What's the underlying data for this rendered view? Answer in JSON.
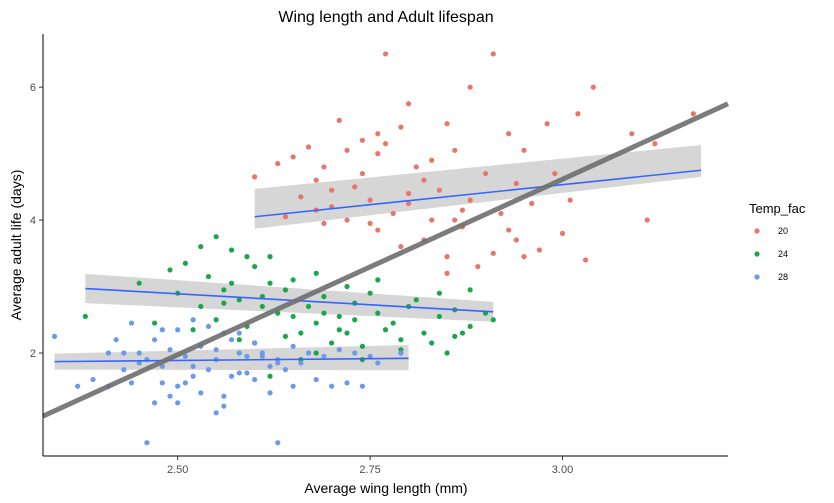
{
  "chart_data": {
    "type": "scatter",
    "title": "Wing length and Adult lifespan",
    "xlabel": "Average wing length (mm)",
    "ylabel": "Average adult life (days)",
    "xlim": [
      2.325,
      3.215
    ],
    "ylim": [
      0.45,
      6.8
    ],
    "x_ticks": [
      2.5,
      2.75,
      3.0
    ],
    "x_tick_labels": [
      "2.50",
      "2.75",
      "3.00"
    ],
    "y_ticks": [
      2,
      4,
      6
    ],
    "y_tick_labels": [
      "2",
      "4",
      "6"
    ],
    "grid": false,
    "legend": {
      "title": "Temp_fac",
      "placement": "right",
      "entries": [
        {
          "label": "20",
          "color": "#e8746a"
        },
        {
          "label": "24",
          "color": "#1aa64a"
        },
        {
          "label": "28",
          "color": "#6a9ae8"
        }
      ]
    },
    "series": [
      {
        "name": "20",
        "color": "#e8746a",
        "points": [
          [
            2.63,
            4.85
          ],
          [
            2.65,
            4.95
          ],
          [
            2.67,
            5.1
          ],
          [
            2.69,
            4.8
          ],
          [
            2.71,
            5.5
          ],
          [
            2.72,
            5.05
          ],
          [
            2.74,
            5.2
          ],
          [
            2.76,
            5.3
          ],
          [
            2.77,
            6.5
          ],
          [
            2.8,
            5.75
          ],
          [
            2.85,
            5.45
          ],
          [
            2.88,
            6.0
          ],
          [
            2.91,
            6.5
          ],
          [
            2.93,
            5.3
          ],
          [
            2.95,
            5.05
          ],
          [
            2.98,
            5.45
          ],
          [
            3.02,
            5.6
          ],
          [
            3.04,
            6.0
          ],
          [
            3.09,
            5.3
          ],
          [
            3.12,
            5.15
          ],
          [
            3.17,
            5.6
          ],
          [
            2.66,
            4.35
          ],
          [
            2.68,
            4.6
          ],
          [
            2.7,
            4.2
          ],
          [
            2.73,
            4.5
          ],
          [
            2.75,
            4.3
          ],
          [
            2.78,
            4.1
          ],
          [
            2.8,
            4.4
          ],
          [
            2.82,
            4.6
          ],
          [
            2.84,
            4.45
          ],
          [
            2.86,
            4.0
          ],
          [
            2.88,
            4.3
          ],
          [
            2.9,
            4.7
          ],
          [
            2.92,
            4.1
          ],
          [
            2.94,
            4.55
          ],
          [
            2.96,
            4.25
          ],
          [
            2.99,
            4.7
          ],
          [
            3.01,
            4.3
          ],
          [
            2.64,
            4.05
          ],
          [
            2.69,
            3.95
          ],
          [
            2.72,
            4.0
          ],
          [
            2.76,
            3.85
          ],
          [
            2.79,
            3.6
          ],
          [
            2.82,
            3.7
          ],
          [
            2.85,
            3.45
          ],
          [
            2.87,
            3.9
          ],
          [
            2.89,
            3.3
          ],
          [
            2.91,
            3.5
          ],
          [
            2.94,
            3.7
          ],
          [
            2.97,
            3.55
          ],
          [
            3.0,
            3.8
          ],
          [
            3.03,
            3.4
          ],
          [
            3.11,
            4.0
          ],
          [
            2.83,
            4.9
          ],
          [
            2.76,
            5.0
          ],
          [
            2.81,
            4.8
          ],
          [
            2.79,
            5.4
          ],
          [
            2.77,
            5.15
          ],
          [
            2.86,
            5.05
          ],
          [
            2.6,
            4.65
          ],
          [
            2.74,
            4.7
          ],
          [
            2.7,
            4.45
          ],
          [
            2.83,
            4.0
          ],
          [
            2.87,
            4.15
          ],
          [
            2.93,
            3.85
          ],
          [
            2.95,
            3.45
          ],
          [
            2.85,
            3.2
          ],
          [
            2.75,
            3.95
          ],
          [
            2.68,
            4.15
          ],
          [
            2.8,
            4.25
          ]
        ]
      },
      {
        "name": "24",
        "color": "#1aa64a",
        "points": [
          [
            2.38,
            2.55
          ],
          [
            2.45,
            3.05
          ],
          [
            2.49,
            3.25
          ],
          [
            2.51,
            3.35
          ],
          [
            2.53,
            3.6
          ],
          [
            2.55,
            3.75
          ],
          [
            2.57,
            3.55
          ],
          [
            2.6,
            3.3
          ],
          [
            2.62,
            3.45
          ],
          [
            2.65,
            3.1
          ],
          [
            2.5,
            2.9
          ],
          [
            2.53,
            2.7
          ],
          [
            2.56,
            2.95
          ],
          [
            2.58,
            2.8
          ],
          [
            2.61,
            2.85
          ],
          [
            2.64,
            2.95
          ],
          [
            2.67,
            2.7
          ],
          [
            2.69,
            2.85
          ],
          [
            2.71,
            2.55
          ],
          [
            2.73,
            2.75
          ],
          [
            2.76,
            2.6
          ],
          [
            2.78,
            2.45
          ],
          [
            2.8,
            2.7
          ],
          [
            2.82,
            2.3
          ],
          [
            2.84,
            2.55
          ],
          [
            2.86,
            2.25
          ],
          [
            2.88,
            2.4
          ],
          [
            2.9,
            2.6
          ],
          [
            2.47,
            2.45
          ],
          [
            2.52,
            2.35
          ],
          [
            2.55,
            2.5
          ],
          [
            2.59,
            2.4
          ],
          [
            2.63,
            2.6
          ],
          [
            2.66,
            2.3
          ],
          [
            2.68,
            2.45
          ],
          [
            2.7,
            2.15
          ],
          [
            2.72,
            2.3
          ],
          [
            2.74,
            2.1
          ],
          [
            2.77,
            2.35
          ],
          [
            2.79,
            2.2
          ],
          [
            2.83,
            2.15
          ],
          [
            2.85,
            2.0
          ],
          [
            2.87,
            2.3
          ],
          [
            2.62,
            1.65
          ],
          [
            2.66,
            1.9
          ],
          [
            2.58,
            2.2
          ],
          [
            2.54,
            3.15
          ],
          [
            2.57,
            3.05
          ],
          [
            2.62,
            3.05
          ],
          [
            2.68,
            3.2
          ],
          [
            2.72,
            3.0
          ],
          [
            2.75,
            2.9
          ],
          [
            2.81,
            2.8
          ],
          [
            2.84,
            2.9
          ],
          [
            2.88,
            2.95
          ],
          [
            2.6,
            2.15
          ],
          [
            2.64,
            2.25
          ],
          [
            2.68,
            2.0
          ],
          [
            2.74,
            1.9
          ],
          [
            2.79,
            2.05
          ],
          [
            2.91,
            2.5
          ],
          [
            2.56,
            2.75
          ],
          [
            2.69,
            2.6
          ],
          [
            2.71,
            2.35
          ],
          [
            2.65,
            2.55
          ],
          [
            2.61,
            2.7
          ],
          [
            2.73,
            2.5
          ],
          [
            2.76,
            3.1
          ],
          [
            2.59,
            3.45
          ],
          [
            2.86,
            2.65
          ]
        ]
      },
      {
        "name": "28",
        "color": "#6a9ae8",
        "points": [
          [
            2.34,
            2.25
          ],
          [
            2.37,
            1.5
          ],
          [
            2.39,
            1.6
          ],
          [
            2.41,
            1.5
          ],
          [
            2.43,
            1.75
          ],
          [
            2.45,
            1.85
          ],
          [
            2.47,
            1.25
          ],
          [
            2.49,
            1.35
          ],
          [
            2.5,
            1.5
          ],
          [
            2.51,
            1.55
          ],
          [
            2.53,
            1.4
          ],
          [
            2.55,
            1.1
          ],
          [
            2.56,
            1.35
          ],
          [
            2.46,
            0.65
          ],
          [
            2.63,
            0.65
          ],
          [
            2.58,
            1.7
          ],
          [
            2.61,
            1.95
          ],
          [
            2.63,
            1.85
          ],
          [
            2.65,
            1.5
          ],
          [
            2.68,
            1.6
          ],
          [
            2.7,
            1.5
          ],
          [
            2.72,
            1.55
          ],
          [
            2.74,
            1.5
          ],
          [
            2.41,
            2.0
          ],
          [
            2.43,
            2.0
          ],
          [
            2.45,
            2.0
          ],
          [
            2.47,
            2.2
          ],
          [
            2.49,
            2.05
          ],
          [
            2.51,
            1.95
          ],
          [
            2.53,
            2.1
          ],
          [
            2.55,
            2.05
          ],
          [
            2.57,
            2.2
          ],
          [
            2.59,
            1.95
          ],
          [
            2.61,
            2.0
          ],
          [
            2.63,
            1.9
          ],
          [
            2.65,
            2.1
          ],
          [
            2.67,
            2.0
          ],
          [
            2.69,
            1.95
          ],
          [
            2.71,
            2.05
          ],
          [
            2.73,
            2.0
          ],
          [
            2.75,
            1.95
          ],
          [
            2.44,
            2.45
          ],
          [
            2.48,
            2.35
          ],
          [
            2.5,
            2.35
          ],
          [
            2.52,
            2.5
          ],
          [
            2.54,
            2.4
          ],
          [
            2.56,
            2.3
          ],
          [
            2.58,
            2.3
          ],
          [
            2.6,
            2.15
          ],
          [
            2.42,
            2.2
          ],
          [
            2.46,
            1.9
          ],
          [
            2.48,
            1.8
          ],
          [
            2.52,
            1.8
          ],
          [
            2.54,
            1.75
          ],
          [
            2.57,
            1.65
          ],
          [
            2.59,
            1.7
          ],
          [
            2.62,
            1.8
          ],
          [
            2.64,
            1.75
          ],
          [
            2.66,
            1.85
          ],
          [
            2.52,
            1.65
          ],
          [
            2.55,
            1.9
          ],
          [
            2.6,
            1.6
          ],
          [
            2.76,
            1.85
          ],
          [
            2.79,
            2.0
          ],
          [
            2.44,
            1.55
          ],
          [
            2.5,
            1.25
          ],
          [
            2.56,
            1.2
          ],
          [
            2.62,
            1.4
          ],
          [
            2.58,
            2.0
          ],
          [
            2.48,
            1.55
          ]
        ]
      }
    ],
    "trend_lines": [
      {
        "name": "20",
        "x": [
          2.6,
          3.18
        ],
        "y": [
          4.05,
          4.75
        ],
        "ci": [
          [
            0.18,
            0.42
          ],
          [
            0.1,
            0.38
          ]
        ]
      },
      {
        "name": "24",
        "x": [
          2.38,
          2.91
        ],
        "y": [
          2.97,
          2.62
        ],
        "ci": [
          [
            0.22,
            0.22
          ],
          [
            0.15,
            0.15
          ]
        ]
      },
      {
        "name": "28",
        "x": [
          2.34,
          2.8
        ],
        "y": [
          1.87,
          1.92
        ],
        "ci": [
          [
            0.12,
            0.12
          ],
          [
            0.18,
            0.2
          ]
        ]
      },
      {
        "name": "overall",
        "x": [
          2.325,
          3.215
        ],
        "y": [
          1.05,
          5.75
        ],
        "ci": [
          [
            0.0,
            0.0
          ],
          [
            0.0,
            0.0
          ]
        ]
      }
    ]
  }
}
